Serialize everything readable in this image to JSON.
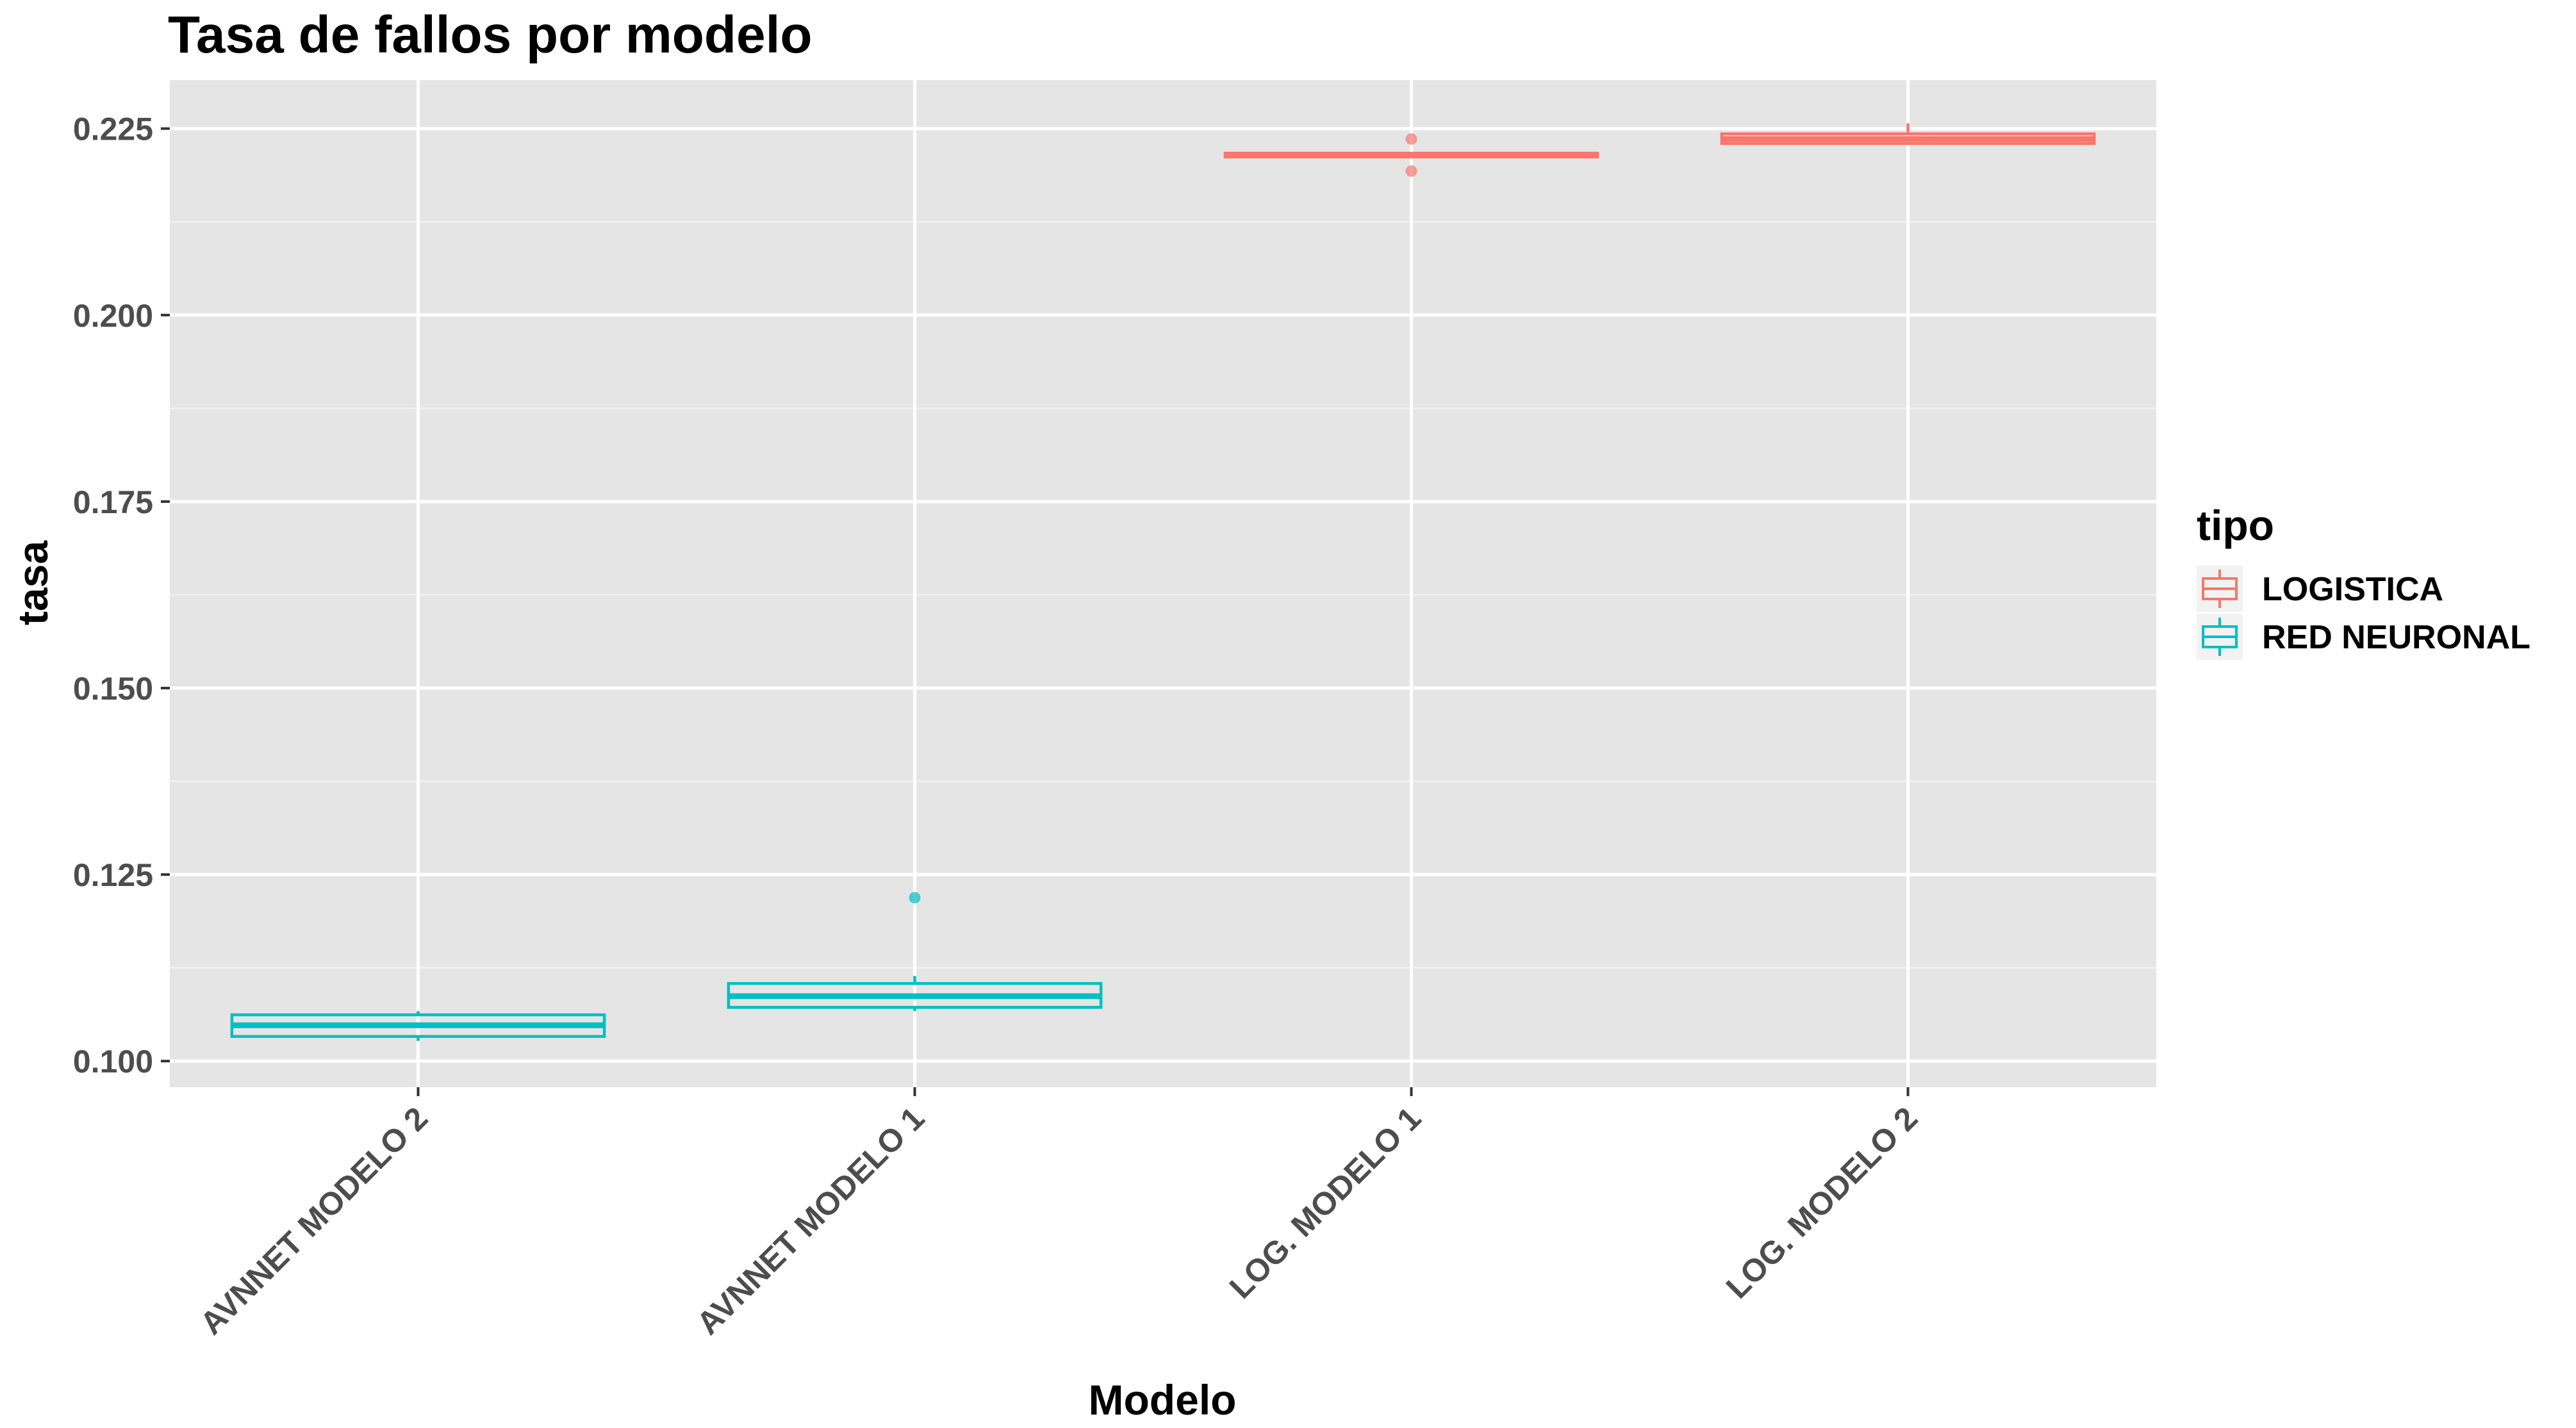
{
  "chart_data": {
    "type": "boxplot",
    "title": "Tasa de fallos por modelo",
    "xlabel": "Modelo",
    "ylabel": "tasa",
    "ylim": [
      0.0965,
      0.2315
    ],
    "y_ticks": [
      "0.100",
      "0.125",
      "0.150",
      "0.175",
      "0.200",
      "0.225"
    ],
    "y_tick_values": [
      0.1,
      0.125,
      0.15,
      0.175,
      0.2,
      0.225
    ],
    "grid": true,
    "background": "#e5e5e5",
    "categories": [
      "AVNNET MODELO 2",
      "AVNNET MODELO 1",
      "LOG. MODELO 1",
      "LOG. MODELO 2"
    ],
    "legend": {
      "title": "tipo",
      "position": "right",
      "entries": [
        {
          "label": "LOGISTICA",
          "color": "#f8766d"
        },
        {
          "label": "RED NEURONAL",
          "color": "#00bfc4"
        }
      ]
    },
    "boxes": [
      {
        "category": "AVNNET MODELO 2",
        "tipo": "RED NEURONAL",
        "color": "#00bfc4",
        "whisker_low": 0.1027,
        "q1": 0.1033,
        "median": 0.1048,
        "q3": 0.1062,
        "whisker_high": 0.1067,
        "outliers": []
      },
      {
        "category": "AVNNET MODELO 1",
        "tipo": "RED NEURONAL",
        "color": "#00bfc4",
        "whisker_low": 0.1067,
        "q1": 0.1072,
        "median": 0.1087,
        "q3": 0.1104,
        "whisker_high": 0.1114,
        "outliers": [
          0.1219
        ]
      },
      {
        "category": "LOG. MODELO 1",
        "tipo": "LOGISTICA",
        "color": "#f8766d",
        "whisker_low": 0.2211,
        "q1": 0.2212,
        "median": 0.2214,
        "q3": 0.2217,
        "whisker_high": 0.2218,
        "outliers": [
          0.2236,
          0.2193
        ]
      },
      {
        "category": "LOG. MODELO 2",
        "tipo": "LOGISTICA",
        "color": "#f8766d",
        "whisker_low": 0.2228,
        "q1": 0.223,
        "median": 0.2236,
        "q3": 0.2243,
        "whisker_high": 0.2257,
        "outliers": []
      }
    ]
  }
}
